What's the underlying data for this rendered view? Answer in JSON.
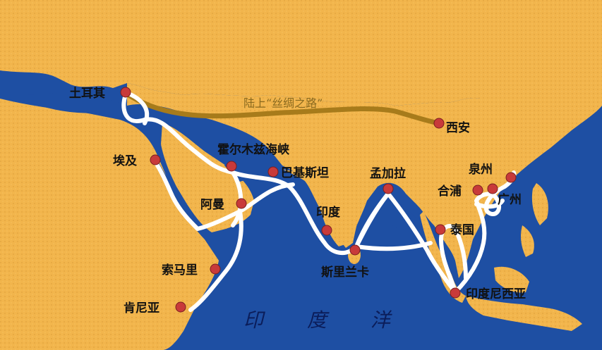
{
  "map": {
    "colors": {
      "sea": "#1e4fa3",
      "land": "#f2b54c",
      "sea_route": "#ffffff",
      "land_route": "#a77b1b",
      "city_dot": "#c83a3a"
    },
    "land_route_label": "陆上“丝绸之路”",
    "ocean_chars": [
      "印",
      "度",
      "洋"
    ],
    "cities": {
      "turkey": "土耳其",
      "xian": "西安",
      "hormuz": "霍尔木兹海峡",
      "egypt": "埃及",
      "pakistan": "巴基斯坦",
      "bangladesh": "孟加拉",
      "quanzhou": "泉州",
      "hepu": "合浦",
      "guangzhou": "广州",
      "oman": "阿曼",
      "india": "印度",
      "thailand": "泰国",
      "somalia": "索马里",
      "srilanka": "斯里兰卡",
      "indonesia": "印度尼西亚",
      "kenya": "肯尼亚"
    }
  }
}
